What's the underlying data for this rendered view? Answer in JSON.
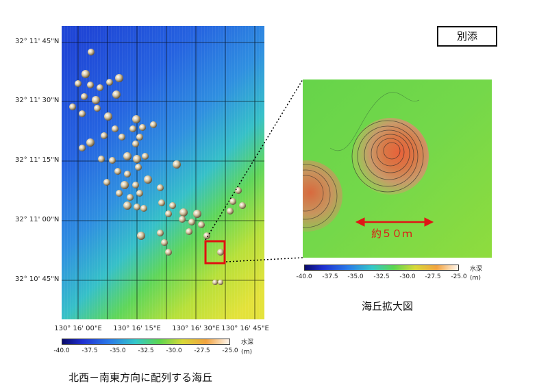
{
  "badge": "別添",
  "main_map": {
    "latitude_labels": [
      "32° 11' 45\"N",
      "32° 11' 30\"N",
      "32° 11' 15\"N",
      "32° 11' 00\"N",
      "32° 10' 45\"N"
    ],
    "longitude_labels": [
      "130° 16' 00\"E",
      "130° 16' 15\"E",
      "130° 16' 30\"E",
      "130° 16' 45\"E"
    ],
    "caption": "北西－南東方向に配列する海丘",
    "highlight_color": "#e01010"
  },
  "inset": {
    "scale_text": "約５０ｍ",
    "caption": "海丘拡大図"
  },
  "colorbar": {
    "title": "水深",
    "unit": "(ｍ)",
    "ticks": [
      "-40.0",
      "-37.5",
      "-35.0",
      "-32.5",
      "-30.0",
      "-27.5",
      "-25.0"
    ]
  }
}
